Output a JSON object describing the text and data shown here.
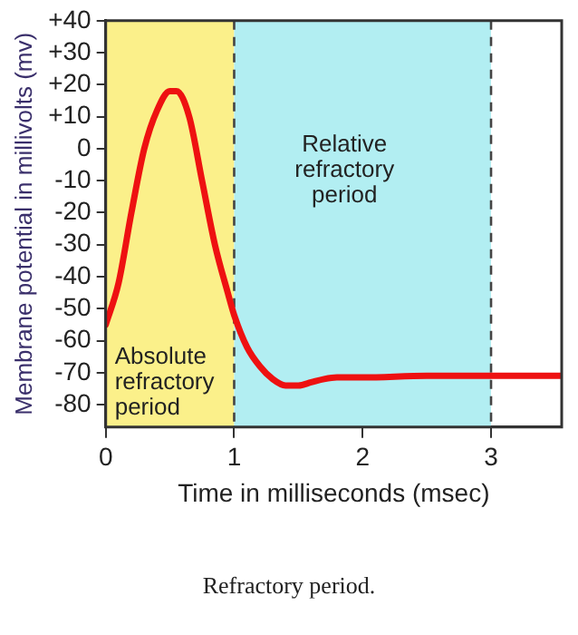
{
  "chart_data": {
    "type": "line",
    "xlabel": "Time in milliseconds (msec)",
    "ylabel": "Membrane potential in millivolts (mv)",
    "x": [
      0,
      0.1,
      0.2,
      0.3,
      0.4,
      0.5,
      0.55,
      0.65,
      0.75,
      0.85,
      0.95,
      1.0,
      1.1,
      1.2,
      1.3,
      1.4,
      1.5,
      1.6,
      1.7,
      1.8,
      2.0,
      2.5,
      3.0,
      3.55
    ],
    "series": [
      {
        "color": "#ee1111",
        "values": [
          -55,
          -42,
          -20,
          0,
          12,
          18,
          18,
          10,
          -10,
          -30,
          -45,
          -52,
          -62,
          -68,
          -72,
          -74,
          -74,
          -73,
          -72,
          -71.5,
          -71.5,
          -71,
          -71,
          -71
        ]
      }
    ],
    "xlim": [
      0,
      3.55
    ],
    "xticks": [
      0,
      1,
      2,
      3
    ],
    "ylim": [
      -87,
      40
    ],
    "yticks": [
      {
        "value": 40,
        "label": "+40"
      },
      {
        "value": 30,
        "label": "+30"
      },
      {
        "value": 20,
        "label": "+20"
      },
      {
        "value": 10,
        "label": "+10"
      },
      0,
      -10,
      -20,
      -30,
      -40,
      -50,
      -60,
      -70,
      -80
    ],
    "bands": [
      {
        "axis": "x",
        "from": 0,
        "to": 1,
        "label": "Absolute refractory period",
        "color": "#fbf08a"
      },
      {
        "axis": "x",
        "from": 1,
        "to": 3,
        "label": "Relative refractory period",
        "color": "#b2eef2"
      }
    ],
    "ref_lines": [
      {
        "axis": "x",
        "value": 1,
        "color": "#444444",
        "line_style": "dashed"
      },
      {
        "axis": "x",
        "value": 3,
        "color": "#444444",
        "line_style": "dashed"
      }
    ],
    "grid": false,
    "legend": false,
    "marker": "none",
    "line_style": "solid",
    "annotations": [
      "Refractory period."
    ]
  }
}
